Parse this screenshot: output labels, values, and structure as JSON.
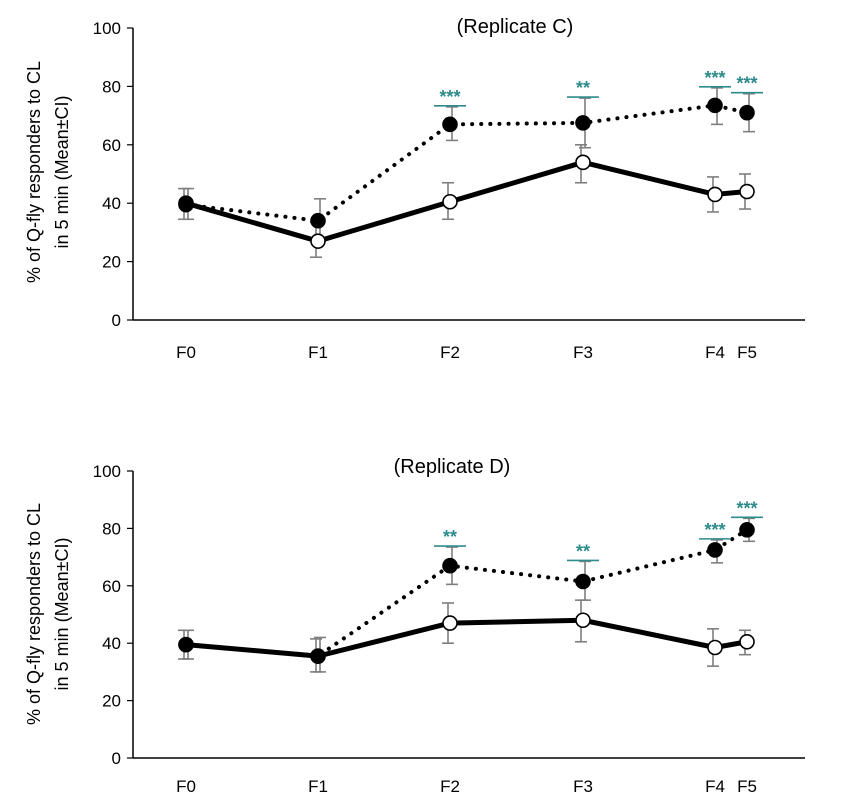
{
  "colors": {
    "significance": "#2E8B8B",
    "line": "#000000",
    "error_bar": "#7f7f7f",
    "open_marker_fill": "#ffffff",
    "filled_marker_fill": "#000000"
  },
  "chart_data": [
    {
      "type": "line",
      "title": "(Replicate C)",
      "ylabel": [
        "% of Q-fly responders to CL",
        "in 5 min (Mean±CI)"
      ],
      "ylim": [
        0,
        100
      ],
      "yticks": [
        "0",
        "20",
        "40",
        "60",
        "80",
        "100"
      ],
      "categories": [
        "F0",
        "F1",
        "F2",
        "F3",
        "F4",
        "F5"
      ],
      "series": [
        {
          "style": "solid",
          "marker": "open-circle",
          "values": [
            40,
            27,
            40.5,
            54,
            43,
            44
          ],
          "ci": [
            [
              34.5,
              45
            ],
            [
              21.5,
              33.5
            ],
            [
              34.5,
              47
            ],
            [
              47,
              60
            ],
            [
              37,
              49
            ],
            [
              38,
              50
            ]
          ]
        },
        {
          "style": "dotted",
          "marker": "filled-circle",
          "values": [
            39.5,
            34,
            67,
            67.5,
            73.5,
            71
          ],
          "ci": [
            [
              34.5,
              45
            ],
            [
              27,
              41.5
            ],
            [
              61.5,
              73
            ],
            [
              59,
              76
            ],
            [
              67,
              79.5
            ],
            [
              64.5,
              77.5
            ]
          ]
        }
      ],
      "significance": [
        "",
        "",
        "***",
        "**",
        "***",
        "***"
      ]
    },
    {
      "type": "line",
      "title": "(Replicate D)",
      "ylabel": [
        "% of Q-fly responders to CL",
        "in 5 min (Mean±CI)"
      ],
      "ylim": [
        0,
        100
      ],
      "yticks": [
        "0",
        "20",
        "40",
        "60",
        "80",
        "100"
      ],
      "categories": [
        "F0",
        "F1",
        "F2",
        "F3",
        "F4",
        "F5"
      ],
      "series": [
        {
          "style": "solid",
          "marker": "open-circle",
          "values": [
            39.5,
            35.5,
            47,
            48,
            38.5,
            40.5
          ],
          "ci": [
            [
              34.5,
              44.5
            ],
            [
              30,
              41.5
            ],
            [
              40,
              54
            ],
            [
              40.5,
              55
            ],
            [
              32,
              45
            ],
            [
              36,
              44.5
            ]
          ]
        },
        {
          "style": "dotted",
          "marker": "filled-circle",
          "values": [
            39.5,
            35.5,
            67,
            61.5,
            72.5,
            79.5
          ],
          "ci": [
            [
              34.5,
              44.5
            ],
            [
              30,
              42
            ],
            [
              60.5,
              73.5
            ],
            [
              55,
              68.5
            ],
            [
              68,
              76
            ],
            [
              75.5,
              83.5
            ]
          ]
        }
      ],
      "significance": [
        "",
        "",
        "**",
        "**",
        "***",
        "***"
      ]
    }
  ]
}
